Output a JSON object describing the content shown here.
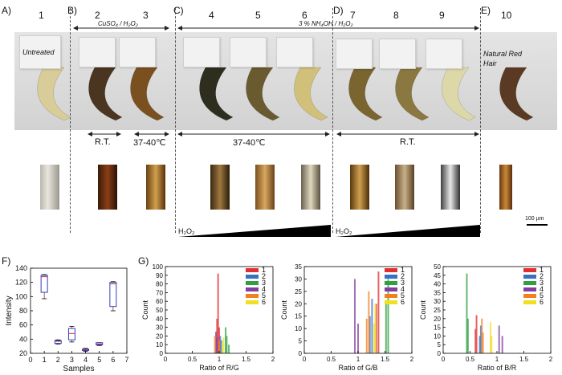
{
  "panels": {
    "A": "A)",
    "B": "B)",
    "C": "C)",
    "D": "D)",
    "E": "E)",
    "F": "F)",
    "G": "G)"
  },
  "sample_numbers": [
    "1",
    "2",
    "3",
    "4",
    "5",
    "6",
    "7",
    "8",
    "9",
    "10"
  ],
  "labels": {
    "untreated": "Untreated",
    "cuso4": "CuSO₄ / H₂O₂",
    "nh4oh": "3 % NH₄OH / H₂O₂",
    "natural_red_1": "Natural Red",
    "natural_red_2": "Hair",
    "rt_b": "R.T.",
    "temp_b": "37-40℃",
    "temp_c": "37-40℃",
    "rt_d": "R.T.",
    "h2o2_c": "H₂O₂",
    "h2o2_d": "H₂O₂",
    "scale_bar": "100 µm"
  },
  "colors": {
    "tress_1": "#d8cc98",
    "tress_2": "#4a3520",
    "tress_3": "#7a5020",
    "tress_4": "#2e2e1e",
    "tress_5": "#6a5a30",
    "tress_6": "#d0c07a",
    "tress_7": "#7a6430",
    "tress_8": "#8a7840",
    "tress_9": "#dcd8a8",
    "tress_10": "#5a3a22"
  },
  "chart_data": [
    {
      "type": "box",
      "panel": "F)",
      "xlabel": "Samples",
      "ylabel": "Intensity",
      "categories": [
        "1",
        "2",
        "3",
        "4",
        "5",
        "6"
      ],
      "xticks": [
        "0",
        "1",
        "2",
        "3",
        "4",
        "5",
        "6",
        "7"
      ],
      "ylim": [
        20,
        140
      ],
      "yticks": [
        "20",
        "40",
        "60",
        "80",
        "100",
        "120",
        "140"
      ],
      "boxes": [
        {
          "min": 97,
          "q1": 106,
          "median": 128,
          "q3": 130,
          "max": 131
        },
        {
          "min": 33,
          "q1": 34,
          "median": 37,
          "q3": 38,
          "max": 39
        },
        {
          "min": 36,
          "q1": 39,
          "median": 48,
          "q3": 55,
          "max": 58
        },
        {
          "min": 23,
          "q1": 24,
          "median": 25,
          "q3": 26,
          "max": 27
        },
        {
          "min": 31,
          "q1": 32,
          "median": 33,
          "q3": 35,
          "max": 35
        },
        {
          "min": 80,
          "q1": 86,
          "median": 118,
          "q3": 120,
          "max": 121
        }
      ]
    },
    {
      "type": "bar",
      "xlabel": "Ratio of R/G",
      "ylabel": "Count",
      "ylim": [
        0,
        100
      ],
      "xlim": [
        0,
        2
      ],
      "yticks": [
        "0",
        "10",
        "20",
        "30",
        "40",
        "50",
        "60",
        "70",
        "80",
        "90",
        "100"
      ],
      "xticks": [
        "0",
        "0.5",
        "1",
        "1.5",
        "2"
      ],
      "legend": [
        "1",
        "2",
        "3",
        "4",
        "5",
        "6"
      ],
      "series_colors": [
        "#e03030",
        "#3a70c0",
        "#30a040",
        "#8040a0",
        "#f08020",
        "#f0e020"
      ],
      "peaks": [
        [
          {
            "x": 0.98,
            "c": 92
          },
          {
            "x": 0.96,
            "c": 40
          },
          {
            "x": 1.0,
            "c": 30
          }
        ],
        [
          {
            "x": 1.02,
            "c": 20
          },
          {
            "x": 1.04,
            "c": 15
          }
        ],
        [
          {
            "x": 1.12,
            "c": 30
          },
          {
            "x": 1.14,
            "c": 20
          },
          {
            "x": 1.18,
            "c": 10
          }
        ],
        [
          {
            "x": 0.94,
            "c": 25
          },
          {
            "x": 0.96,
            "c": 18
          }
        ],
        [
          {
            "x": 0.92,
            "c": 20
          },
          {
            "x": 1.0,
            "c": 15
          }
        ],
        [
          {
            "x": 1.08,
            "c": 18
          },
          {
            "x": 1.06,
            "c": 12
          }
        ]
      ]
    },
    {
      "type": "bar",
      "xlabel": "Ratio of G/B",
      "ylabel": "Count",
      "ylim": [
        0,
        35
      ],
      "xlim": [
        0,
        2
      ],
      "yticks": [
        "0",
        "5",
        "10",
        "15",
        "20",
        "25",
        "30",
        "35"
      ],
      "xticks": [
        "0",
        "0.5",
        "1",
        "1.5",
        "2"
      ],
      "legend": [
        "1",
        "2",
        "3",
        "4",
        "5",
        "6"
      ],
      "series_colors": [
        "#e03030",
        "#3a70c0",
        "#30a040",
        "#8040a0",
        "#f08020",
        "#f0e020"
      ],
      "peaks": [
        [
          {
            "x": 1.38,
            "c": 33
          },
          {
            "x": 1.34,
            "c": 20
          }
        ],
        [
          {
            "x": 1.26,
            "c": 22
          },
          {
            "x": 1.22,
            "c": 15
          }
        ],
        [
          {
            "x": 1.56,
            "c": 30
          },
          {
            "x": 1.52,
            "c": 20
          }
        ],
        [
          {
            "x": 0.94,
            "c": 30
          },
          {
            "x": 1.0,
            "c": 12
          }
        ],
        [
          {
            "x": 1.2,
            "c": 25
          },
          {
            "x": 1.16,
            "c": 14
          }
        ],
        [
          {
            "x": 1.32,
            "c": 20
          },
          {
            "x": 1.3,
            "c": 12
          }
        ]
      ]
    },
    {
      "type": "bar",
      "xlabel": "Ratio of B/R",
      "ylabel": "Count",
      "ylim": [
        0,
        50
      ],
      "xlim": [
        0,
        2
      ],
      "yticks": [
        "0",
        "5",
        "10",
        "15",
        "20",
        "25",
        "30",
        "35",
        "40",
        "45",
        "50"
      ],
      "xticks": [
        "0",
        "0.5",
        "1",
        "1.5",
        "2"
      ],
      "legend": [
        "1",
        "2",
        "3",
        "4",
        "5",
        "6"
      ],
      "series_colors": [
        "#e03030",
        "#3a70c0",
        "#30a040",
        "#8040a0",
        "#f08020",
        "#f0e020"
      ],
      "peaks": [
        [
          {
            "x": 0.62,
            "c": 22
          },
          {
            "x": 0.6,
            "c": 14
          }
        ],
        [
          {
            "x": 0.7,
            "c": 16
          },
          {
            "x": 0.68,
            "c": 10
          }
        ],
        [
          {
            "x": 0.44,
            "c": 46
          },
          {
            "x": 0.46,
            "c": 20
          }
        ],
        [
          {
            "x": 1.04,
            "c": 16
          },
          {
            "x": 1.1,
            "c": 10
          }
        ],
        [
          {
            "x": 0.72,
            "c": 20
          },
          {
            "x": 0.74,
            "c": 12
          }
        ],
        [
          {
            "x": 0.88,
            "c": 18
          },
          {
            "x": 0.9,
            "c": 10
          }
        ]
      ]
    }
  ]
}
